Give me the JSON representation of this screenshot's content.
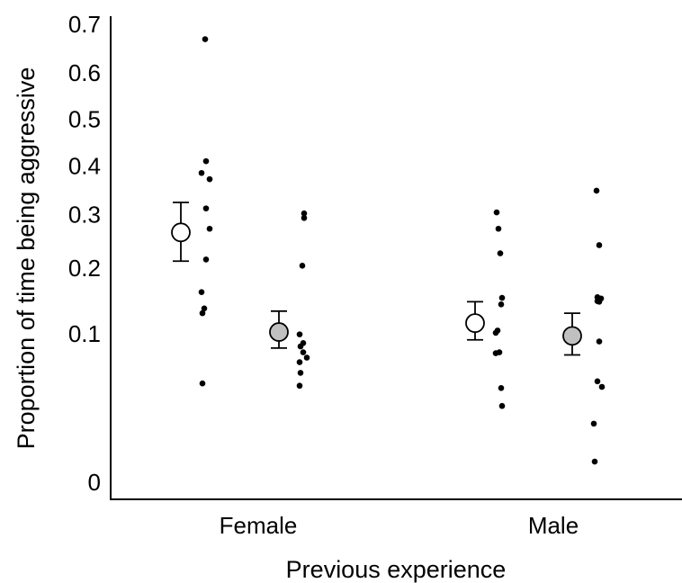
{
  "chart_data": {
    "type": "scatter",
    "title": "",
    "xlabel": "Previous experience",
    "ylabel": "Proportion of time being aggressive",
    "y_scale": "arcsine-square-root",
    "ylim": [
      0,
      0.7
    ],
    "y_ticks": [
      "0",
      "0.1",
      "0.2",
      "0.3",
      "0.4",
      "0.5",
      "0.6",
      "0.7"
    ],
    "y_tick_values": [
      0,
      0.1,
      0.2,
      0.3,
      0.4,
      0.5,
      0.6,
      0.7
    ],
    "categories": [
      "Female",
      "Male"
    ],
    "grid": false,
    "legend": "none",
    "colors": {
      "open_marker": "#ffffff",
      "filled_marker": "#c0c0c0",
      "points": "#000000"
    },
    "groups": [
      {
        "category": "Female",
        "marker": "open",
        "mean": 0.265,
        "error_low": 0.212,
        "error_high": 0.324,
        "points": [
          0.67,
          0.41,
          0.385,
          0.372,
          0.312,
          0.272,
          0.215,
          0.16,
          0.135,
          0.128,
          0.045
        ]
      },
      {
        "category": "Female",
        "marker": "filled",
        "mean": 0.102,
        "error_low": 0.082,
        "error_high": 0.131,
        "points": [
          0.302,
          0.293,
          0.204,
          0.099,
          0.088,
          0.084,
          0.077,
          0.071,
          0.066,
          0.055,
          0.043
        ]
      },
      {
        "category": "Male",
        "marker": "open",
        "mean": 0.114,
        "error_low": 0.092,
        "error_high": 0.145,
        "points": [
          0.304,
          0.272,
          0.226,
          0.151,
          0.141,
          0.104,
          0.101,
          0.077,
          0.076,
          0.041,
          0.027
        ]
      },
      {
        "category": "Male",
        "marker": "filled",
        "mean": 0.097,
        "error_low": 0.074,
        "error_high": 0.128,
        "points": [
          0.348,
          0.241,
          0.152,
          0.15,
          0.146,
          0.145,
          0.09,
          0.047,
          0.042,
          0.016,
          0.002
        ]
      }
    ]
  }
}
